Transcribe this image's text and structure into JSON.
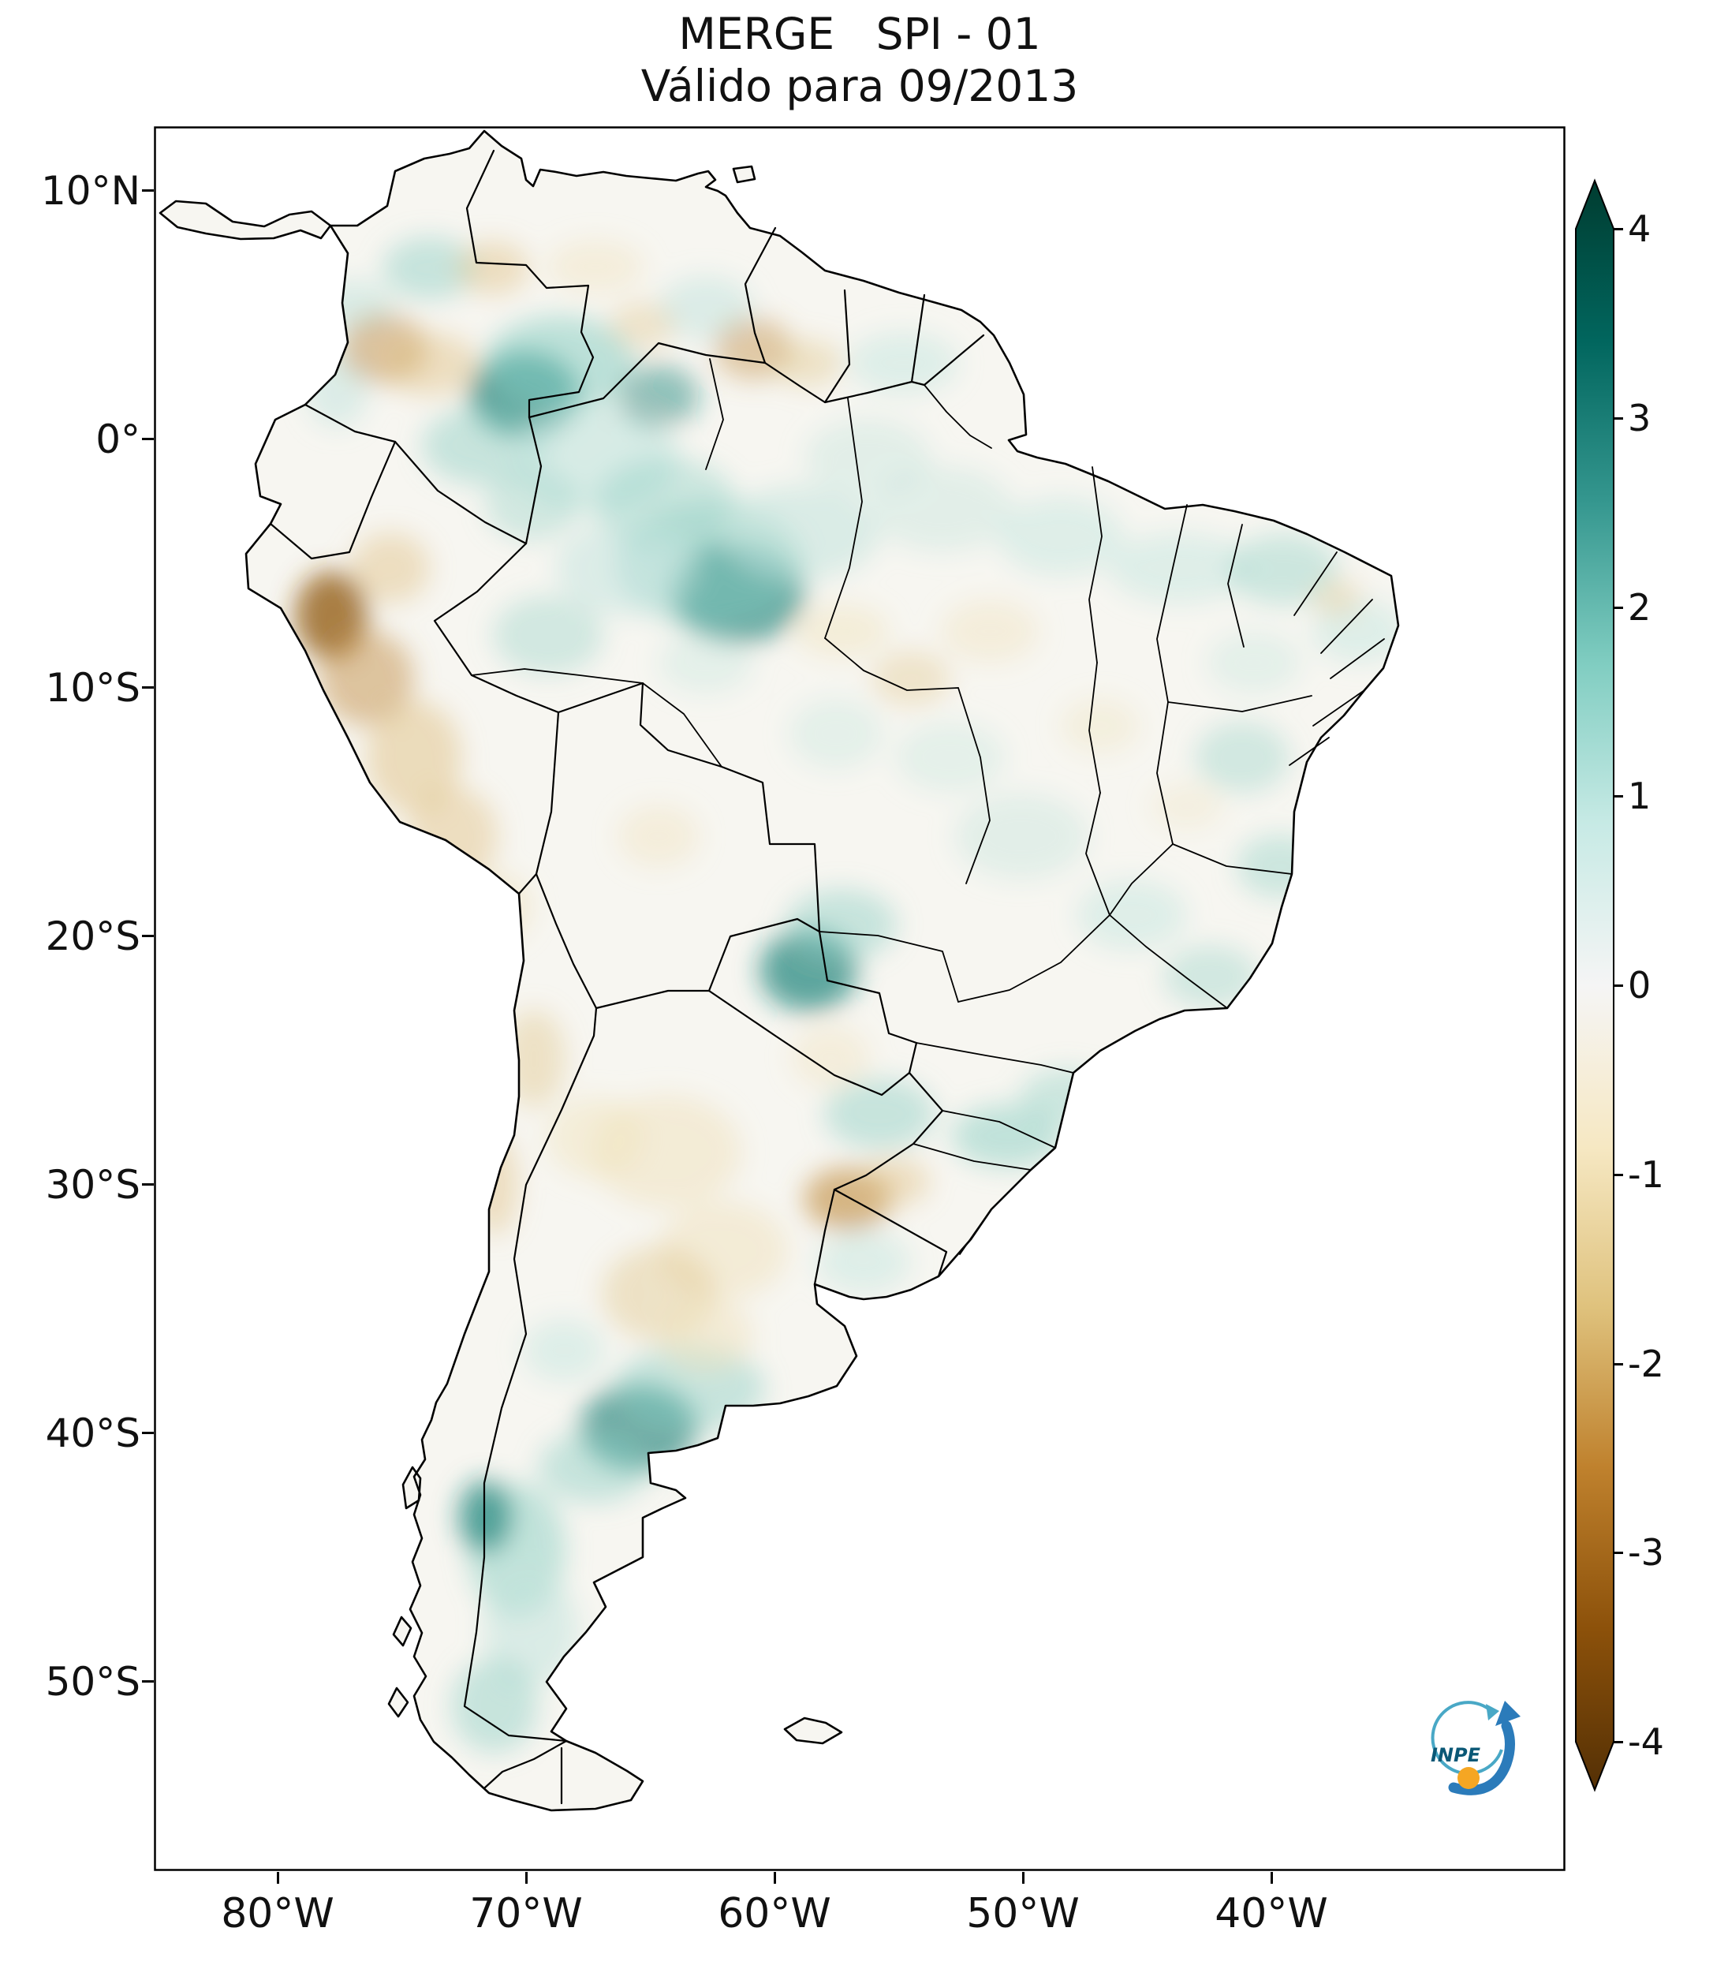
{
  "figure": {
    "title": "MERGE   SPI - 01",
    "subtitle": "Válido para 09/2013"
  },
  "chart_data": {
    "type": "heatmap",
    "title": "MERGE   SPI - 01",
    "subtitle": "Válido para 09/2013",
    "variable": "SPI - 01",
    "valid_for": "09/2013",
    "region": "South America",
    "grid": false,
    "x_axis": {
      "ticks": [
        "80°W",
        "70°W",
        "60°W",
        "50°W",
        "40°W"
      ]
    },
    "y_axis": {
      "ticks": [
        "10°N",
        "0°",
        "10°S",
        "20°S",
        "30°S",
        "40°S",
        "50°S"
      ]
    },
    "colorbar": {
      "min": -4,
      "max": 4,
      "ticks": [
        "4",
        "3",
        "2",
        "1",
        "0",
        "-1",
        "-2",
        "-3",
        "-4"
      ],
      "extend": "both",
      "colormap": "BrBG",
      "position": "right",
      "stops": [
        {
          "value": -4.0,
          "color": "#543005"
        },
        {
          "value": -3.2,
          "color": "#8c510a"
        },
        {
          "value": -2.4,
          "color": "#bf812d"
        },
        {
          "value": -1.6,
          "color": "#dfc27d"
        },
        {
          "value": -0.8,
          "color": "#f6e8c3"
        },
        {
          "value": 0.0,
          "color": "#f5f5f5"
        },
        {
          "value": 0.8,
          "color": "#c7eae5"
        },
        {
          "value": 1.6,
          "color": "#80cdc1"
        },
        {
          "value": 2.4,
          "color": "#35978f"
        },
        {
          "value": 3.2,
          "color": "#01665e"
        },
        {
          "value": 4.0,
          "color": "#003c30"
        }
      ]
    },
    "observations": [
      {
        "area": "northwest Amazon (Colombia/Venezuela/Brazil border)",
        "spi_approx": 2.5
      },
      {
        "area": "central Amazon (~61W, 6S)",
        "spi_approx": 2
      },
      {
        "area": "Peruvian coast and western Andes",
        "spi_approx": -2.5
      },
      {
        "area": "northern Colombia / Venezuela border",
        "spi_approx": -1.5
      },
      {
        "area": "Roraima / Guyana border",
        "spi_approx": -1.5
      },
      {
        "area": "southern Pantanal / northern Paraguay (~58W, 21S)",
        "spi_approx": 2
      },
      {
        "area": "Rio Grande do Sul, south Brazil (~54W, 29S)",
        "spi_approx": -2
      },
      {
        "area": "Santa Catarina coast",
        "spi_approx": 1.5
      },
      {
        "area": "central Argentina (~64W, 39S)",
        "spi_approx": 2
      },
      {
        "area": "western Patagonia",
        "spi_approx": 1.5
      },
      {
        "area": "Argentine pampas / Chaco",
        "spi_approx": -1
      },
      {
        "area": "northeast Brazil coast (Ceará)",
        "spi_approx": 1
      },
      {
        "area": "eastern Brazil coast (Bahia/Espírito Santo)",
        "spi_approx": 1
      }
    ]
  },
  "logo": {
    "label": "INPE",
    "colors": {
      "arrow": "#2b7bba",
      "ring": "#49a8c6",
      "sphere": "#f5a623",
      "text": "#0a5876"
    }
  }
}
